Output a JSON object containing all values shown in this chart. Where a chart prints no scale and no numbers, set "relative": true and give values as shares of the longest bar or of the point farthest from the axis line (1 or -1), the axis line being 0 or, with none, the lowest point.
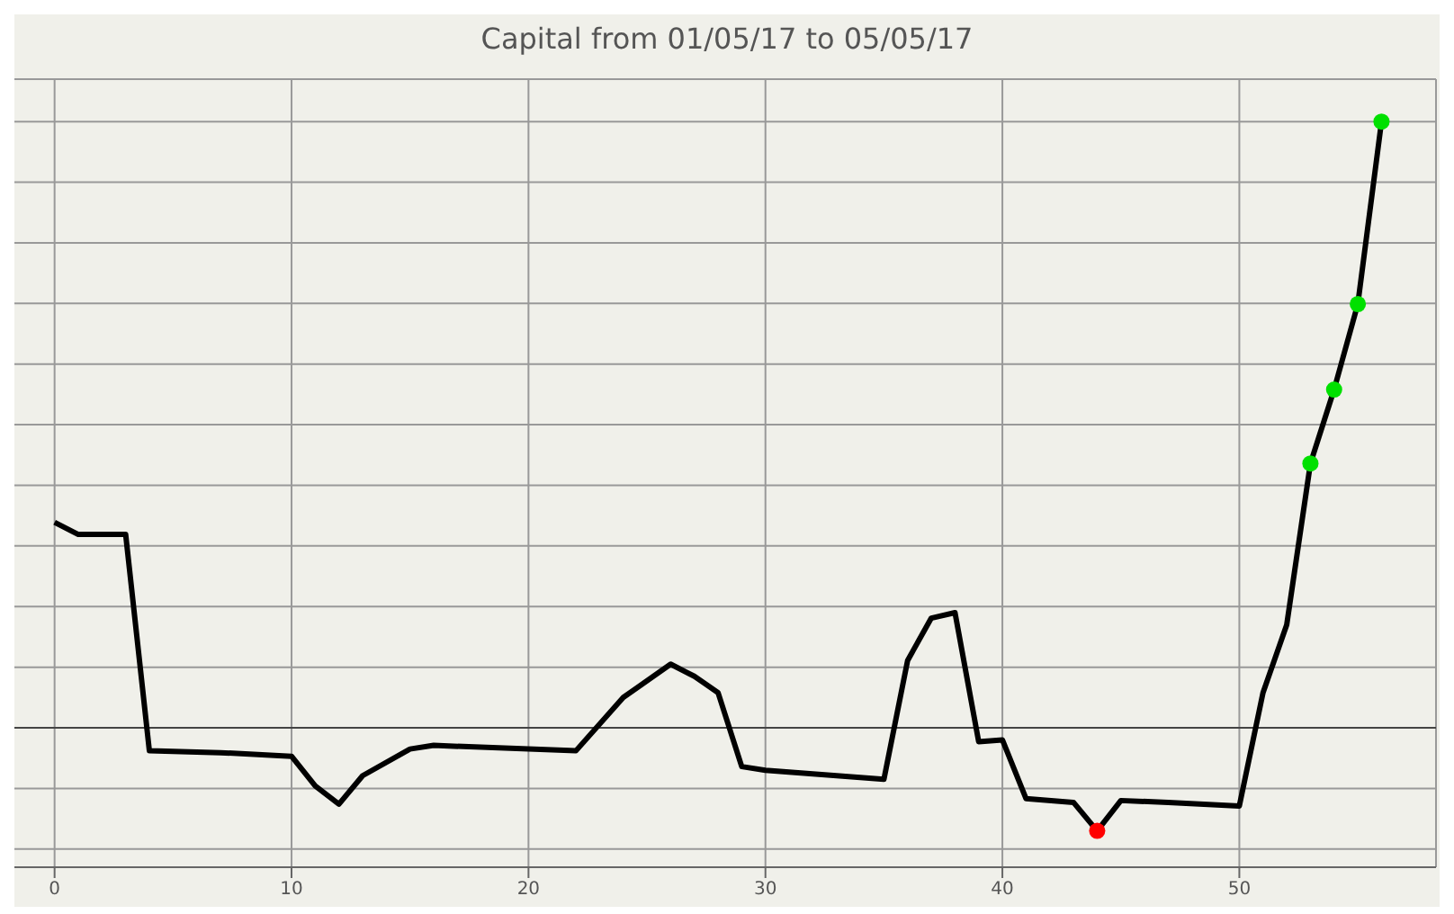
{
  "chart_data": {
    "type": "line",
    "title": "Capital from 01/05/17 to 05/05/17",
    "relative": true,
    "xlim": [
      -2,
      58.3
    ],
    "xticks": [
      0,
      10,
      20,
      30,
      40,
      50
    ],
    "grid": true,
    "series": [
      {
        "type": "line",
        "color": "#000000",
        "marker": "none",
        "x": [
          0,
          1,
          3,
          4,
          7,
          10,
          11,
          12,
          13,
          15,
          16,
          22,
          24,
          26,
          27,
          28,
          29,
          30,
          31,
          33,
          35,
          36,
          37,
          38,
          39,
          40,
          41,
          43,
          44,
          45,
          47,
          50,
          51,
          52,
          53,
          54,
          55,
          56
        ],
        "values": [
          0.339,
          0.319,
          0.319,
          -0.038,
          -0.041,
          -0.047,
          -0.096,
          -0.126,
          -0.079,
          -0.035,
          -0.029,
          -0.038,
          0.05,
          0.105,
          0.085,
          0.058,
          -0.064,
          -0.07,
          -0.073,
          -0.079,
          -0.085,
          0.111,
          0.181,
          0.19,
          -0.023,
          -0.02,
          -0.117,
          -0.123,
          -0.17,
          -0.12,
          -0.123,
          -0.129,
          0.058,
          0.17,
          0.436,
          0.558,
          0.699,
          1
        ]
      },
      {
        "type": "scatter",
        "color": "#00e000",
        "marker": "circle",
        "x": [
          53,
          54,
          55,
          56
        ],
        "values": [
          0.436,
          0.558,
          0.699,
          1
        ]
      },
      {
        "type": "scatter",
        "color": "#ff0000",
        "marker": "circle",
        "x": [
          44
        ],
        "values": [
          -0.17
        ]
      }
    ]
  }
}
